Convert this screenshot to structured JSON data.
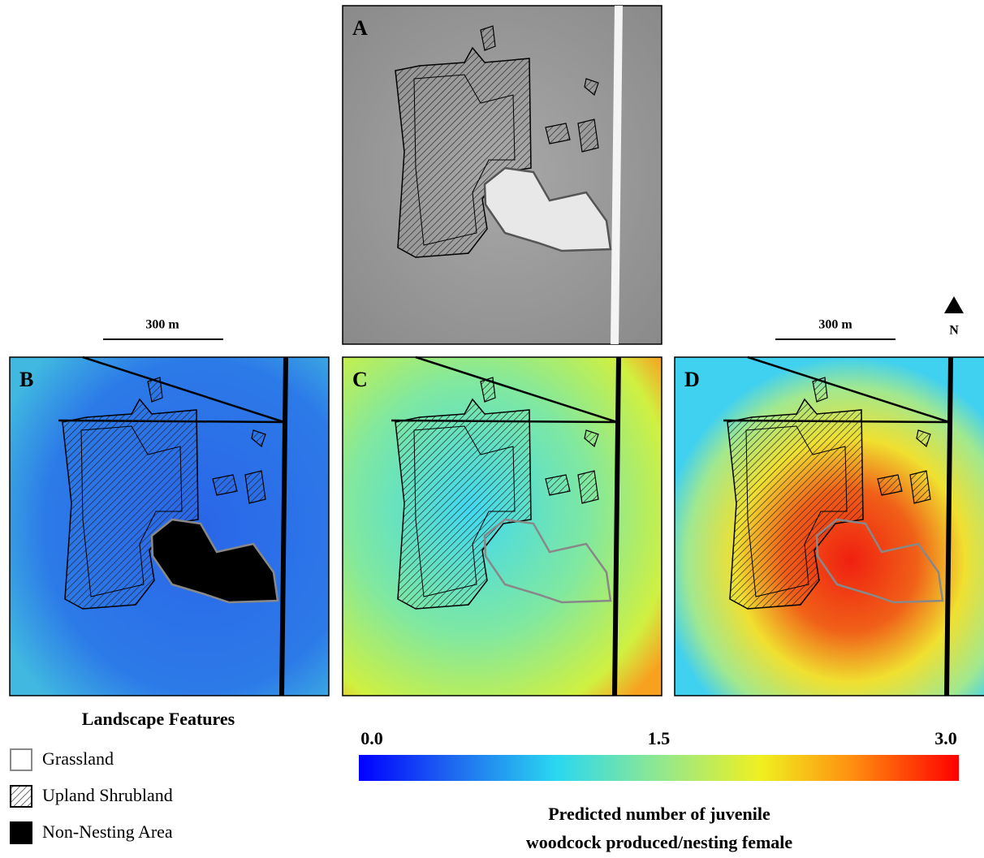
{
  "panels": [
    {
      "label": "A"
    },
    {
      "label": "B"
    },
    {
      "label": "C"
    },
    {
      "label": "D"
    }
  ],
  "scale_bars": [
    {
      "label": "300 m"
    },
    {
      "label": "300 m"
    }
  ],
  "north_arrow": {
    "label": "N"
  },
  "legend": {
    "title": "Landscape Features",
    "items": [
      {
        "label": "Grassland"
      },
      {
        "label": "Upland Shrubland"
      },
      {
        "label": "Non-Nesting Area"
      }
    ]
  },
  "colorbar": {
    "ticks": [
      {
        "value": 0,
        "label": "0.0"
      },
      {
        "value": 1.5,
        "label": "1.5"
      },
      {
        "value": 3,
        "label": "3.0"
      }
    ],
    "title": [
      "Predicted number of juvenile",
      "woodcock  produced/nesting female"
    ]
  }
}
